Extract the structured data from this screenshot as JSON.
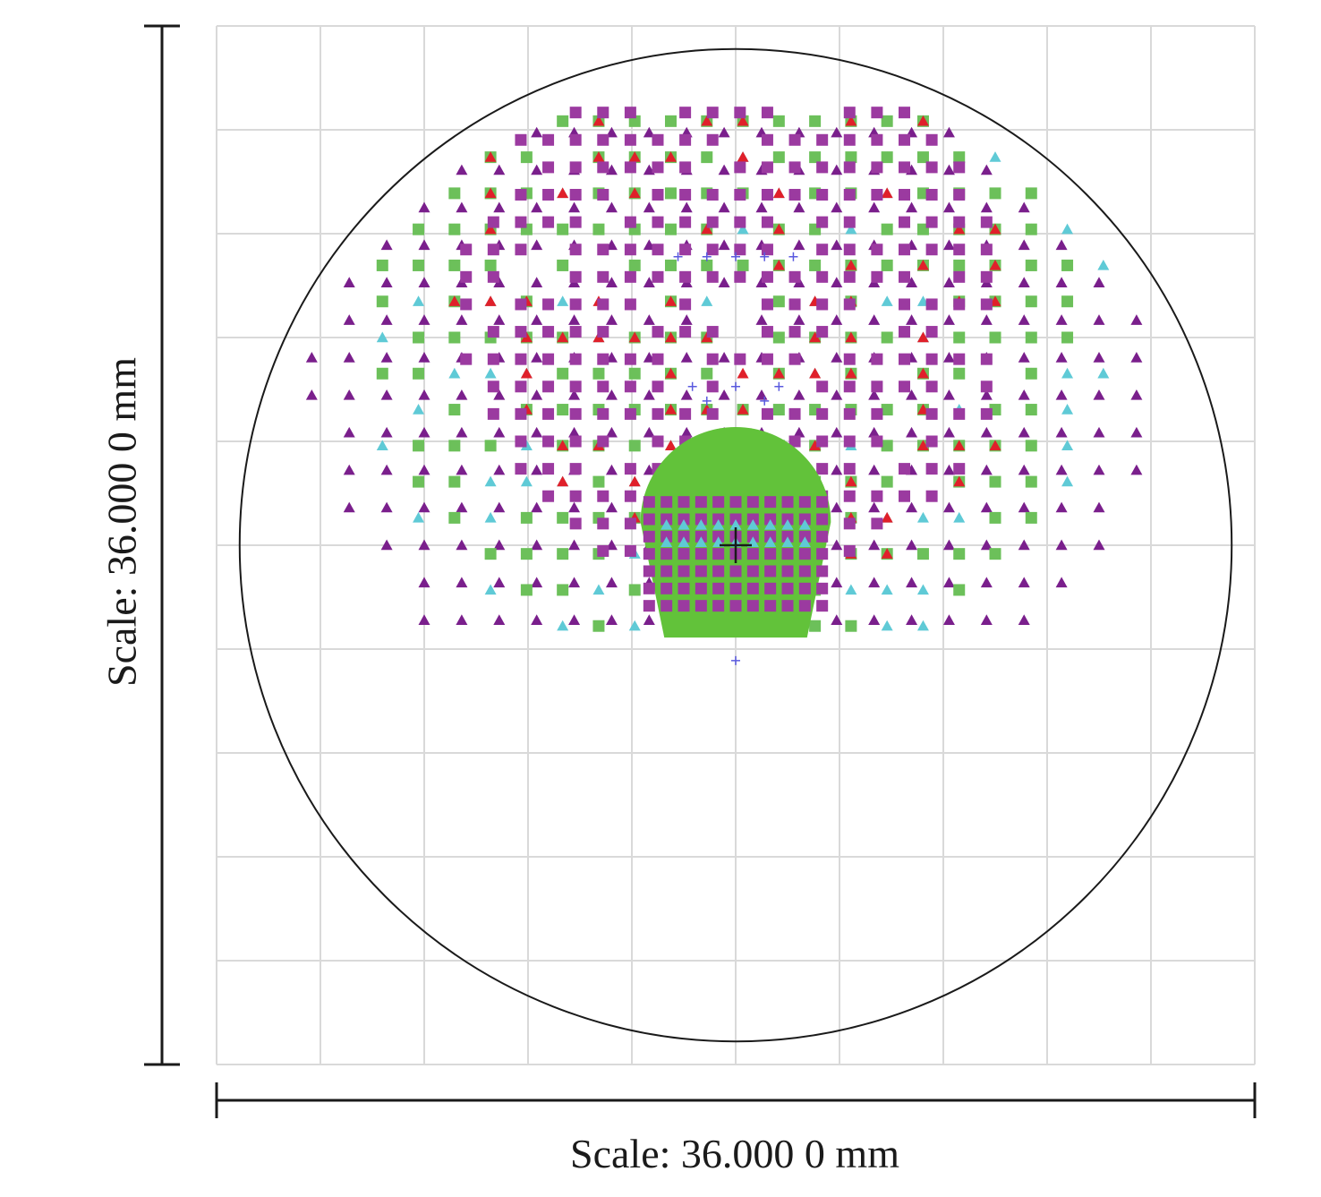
{
  "chart_data": {
    "type": "scatter",
    "plot_kind": "spot diagram",
    "x_scale_label": "Scale: 36.000 0 mm",
    "y_scale_label": "Scale: 36.000 0 mm",
    "units": "mm",
    "xlim": [
      -18,
      18
    ],
    "ylim": [
      -18,
      18
    ],
    "grid": true,
    "grid_divisions": 10,
    "circle": {
      "cx": 0,
      "cy": 0,
      "r": 17.2
    },
    "chief_ray": {
      "x": 0,
      "y": 0
    },
    "series": [
      {
        "marker": "triangle",
        "color": "#7a1f8c",
        "pattern": "rings",
        "cx": 0,
        "cy": 8.2,
        "rings": [
          [
            0.85,
            4.4,
            4
          ],
          [
            4.4,
            9.2,
            5
          ],
          [
            9.2,
            15.3,
            6
          ]
        ],
        "step": 1.3,
        "density": 1.0
      },
      {
        "marker": "triangle",
        "color": "#5fcad6",
        "pattern": "rings",
        "cx": 0,
        "cy": 8.2,
        "rings": [
          [
            0.7,
            3.5,
            0
          ],
          [
            3.5,
            8.0,
            1
          ],
          [
            8.0,
            13.2,
            3
          ]
        ],
        "step": 1.25,
        "density": 0.8
      },
      {
        "marker": "square",
        "color": "#6cc05a",
        "pattern": "rings",
        "cx": 0,
        "cy": 8.2,
        "rings": [
          [
            1.1,
            3.8,
            0
          ],
          [
            3.8,
            8.3,
            1
          ],
          [
            8.3,
            12.6,
            2
          ]
        ],
        "step": 1.25,
        "density": 0.75
      },
      {
        "marker": "triangle",
        "color": "#e0202a",
        "pattern": "rings",
        "cx": 0,
        "cy": 8.2,
        "rings": [
          [
            1.1,
            3.5,
            0
          ],
          [
            3.5,
            7.8,
            0
          ],
          [
            7.8,
            10.2,
            1
          ]
        ],
        "step": 1.25,
        "density": 0.45
      },
      {
        "marker": "square",
        "color": "#9b3aa0",
        "pattern": "rings",
        "cx": 0,
        "cy": 8.2,
        "rings": [
          [
            1.0,
            3.3,
            0
          ],
          [
            3.3,
            7.0,
            0
          ],
          [
            7.0,
            9.6,
            1
          ]
        ],
        "step": 0.95,
        "density": 0.85
      },
      {
        "marker": "cross",
        "color": "#5a5adf",
        "pattern": "sparse",
        "x": [
          -2.0,
          -1.0,
          0.0,
          1.0,
          2.0,
          -1.5,
          0.0,
          1.5,
          -1.0,
          1.0,
          0.0
        ],
        "y": [
          10.0,
          10.0,
          10.0,
          10.0,
          10.0,
          5.5,
          5.5,
          5.5,
          5.0,
          5.0,
          -4.0
        ]
      },
      {
        "marker": "disk",
        "color": "#62c23a",
        "pattern": "region",
        "cx": 0,
        "cy": 0.8,
        "r": 3.3,
        "ymin": -3.2
      },
      {
        "marker": "square",
        "color": "#9b3aa0",
        "pattern": "grid",
        "cx": 0,
        "cy": -0.3,
        "halfwidth": 3.0,
        "halfheight": 1.8,
        "step": 0.6
      },
      {
        "marker": "triangle",
        "color": "#5fcad6",
        "pattern": "grid",
        "cx": 0,
        "cy": 0.6,
        "halfwidth": 2.4,
        "halfheight": 0.5,
        "step": 0.6
      }
    ]
  }
}
